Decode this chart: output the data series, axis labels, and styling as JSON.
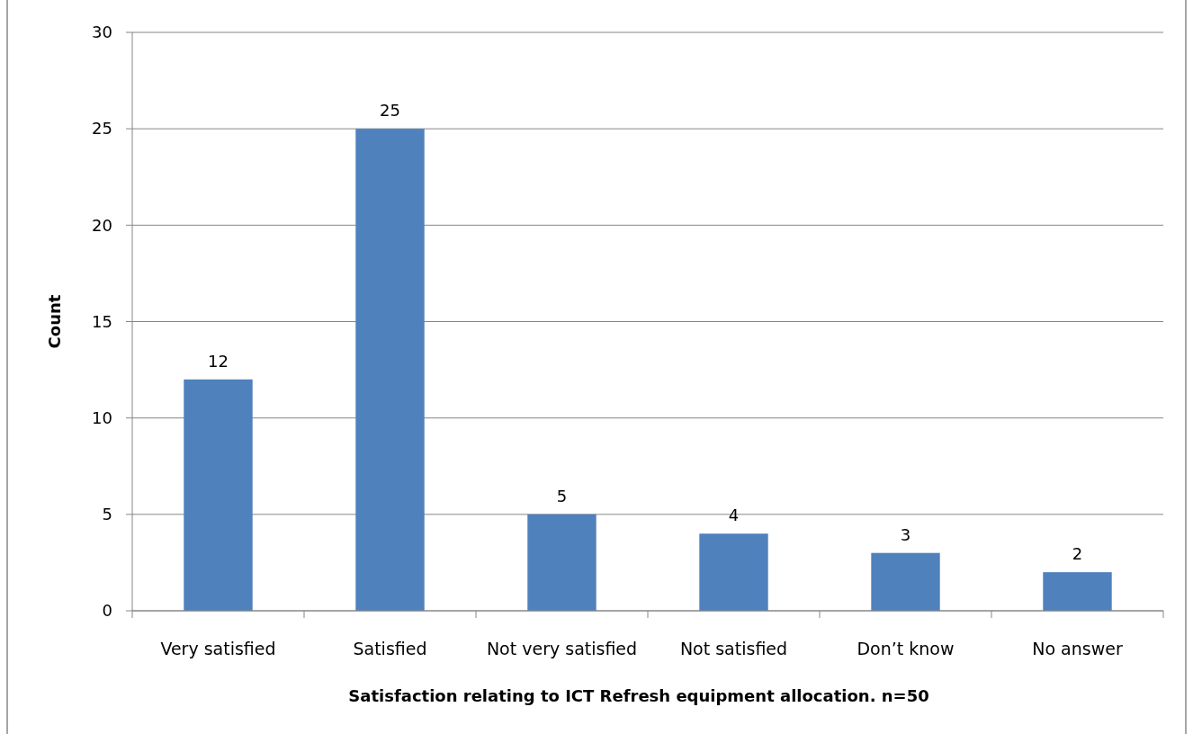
{
  "chart_data": {
    "type": "bar",
    "xlabel": "Satisfaction relating to ICT Refresh equipment allocation.  n=50",
    "ylabel": "Count",
    "categories": [
      "Very satisfied",
      "Satisfied",
      "Not very satisfied",
      "Not satisfied",
      "Don’t know",
      "No answer"
    ],
    "values": [
      12,
      25,
      5,
      4,
      3,
      2
    ],
    "color": "#4f81bd",
    "ylim": [
      0,
      30
    ],
    "yticks": [
      0,
      5,
      10,
      15,
      20,
      25,
      30
    ],
    "grid": "y",
    "data_labels": true
  }
}
